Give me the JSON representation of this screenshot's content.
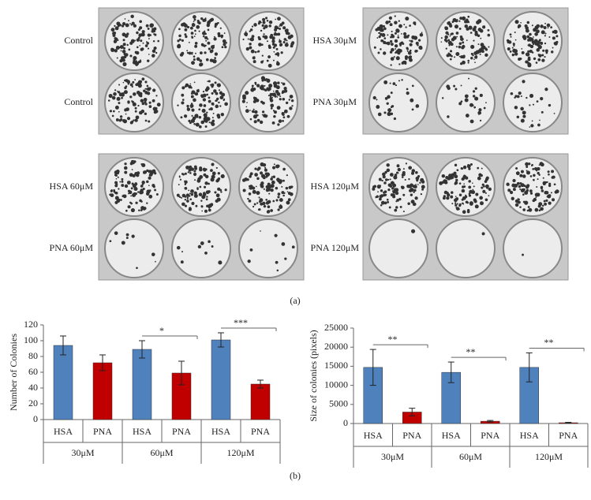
{
  "panel_a": {
    "plates": [
      {
        "rows": [
          "Control",
          "Control"
        ]
      },
      {
        "rows": [
          "HSA 30μM",
          "PNA 30μM"
        ]
      },
      {
        "rows": [
          "HSA 60μM",
          "PNA 60μM"
        ]
      },
      {
        "rows": [
          "HSA 120μM",
          "PNA 120μM"
        ]
      }
    ],
    "label": "(a)"
  },
  "panel_b": {
    "label": "(b)"
  },
  "chart_data": [
    {
      "type": "bar",
      "y_label": "Number of Colonies",
      "categories": [
        "HSA",
        "PNA",
        "HSA",
        "PNA",
        "HSA",
        "PNA"
      ],
      "groups": [
        "30μM",
        "60μM",
        "120μM"
      ],
      "values": [
        94,
        72,
        89,
        59,
        101,
        45
      ],
      "errors": [
        12,
        10,
        11,
        15,
        9,
        5
      ],
      "colors": [
        "#4f81bd",
        "#c00000",
        "#4f81bd",
        "#c00000",
        "#4f81bd",
        "#c00000"
      ],
      "significance": [
        null,
        null,
        null,
        "*",
        null,
        "***"
      ],
      "ylim": [
        0,
        120
      ],
      "yticks": [
        0,
        20,
        40,
        60,
        80,
        100,
        120
      ]
    },
    {
      "type": "bar",
      "y_label": "Size of colonies (pixels)",
      "categories": [
        "HSA",
        "PNA",
        "HSA",
        "PNA",
        "HSA",
        "PNA"
      ],
      "groups": [
        "30μM",
        "60μM",
        "120μM"
      ],
      "values": [
        14700,
        3000,
        13400,
        600,
        14700,
        200
      ],
      "errors": [
        4700,
        1000,
        2700,
        200,
        3800,
        100
      ],
      "colors": [
        "#4f81bd",
        "#c00000",
        "#4f81bd",
        "#c00000",
        "#4f81bd",
        "#c00000"
      ],
      "significance": [
        null,
        "**",
        null,
        "**",
        null,
        "**"
      ],
      "ylim": [
        0,
        25000
      ],
      "yticks": [
        0,
        5000,
        10000,
        15000,
        20000,
        25000
      ]
    }
  ]
}
